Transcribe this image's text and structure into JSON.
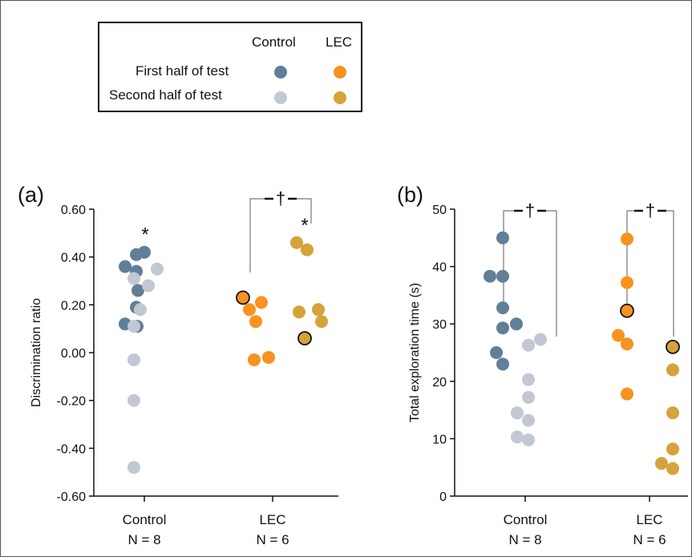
{
  "colors": {
    "control_first": "#607f98",
    "control_second": "#c1c8d3",
    "lec_first": "#f7931e",
    "lec_second": "#d4a33a",
    "axis": "#111111",
    "bracket": "#777777"
  },
  "legend": {
    "col_control": "Control",
    "col_lec": "LEC",
    "row_first": "First half of test",
    "row_second": "Second half of test"
  },
  "chart_data": [
    {
      "type": "scatter",
      "panel_label": "(a)",
      "ylabel": "Discrimination ratio",
      "ylim": [
        -0.6,
        0.6
      ],
      "yticks": [
        "0.60",
        "0.40",
        "0.20",
        "0.00",
        "-0.20",
        "-0.40",
        "-0.60"
      ],
      "ytick_values": [
        0.6,
        0.4,
        0.2,
        0.0,
        -0.2,
        -0.4,
        -0.6
      ],
      "groups": [
        {
          "name": "Control",
          "n_text": "N = 8"
        },
        {
          "name": "LEC",
          "n_text": "N = 6"
        }
      ],
      "series": [
        {
          "group": 0,
          "half": "first",
          "values": [
            0.42,
            0.41,
            0.36,
            0.34,
            0.26,
            0.19,
            0.12,
            0.11
          ]
        },
        {
          "group": 0,
          "half": "second",
          "values": [
            0.35,
            0.31,
            0.28,
            0.18,
            0.11,
            -0.03,
            -0.2,
            -0.48
          ]
        },
        {
          "group": 1,
          "half": "first",
          "values": [
            0.23,
            0.21,
            0.18,
            0.13,
            -0.02,
            -0.03
          ],
          "outlined_index": 0
        },
        {
          "group": 1,
          "half": "second",
          "values": [
            0.46,
            0.43,
            0.18,
            0.17,
            0.13,
            0.06
          ],
          "outlined_index": 5
        }
      ],
      "annotations": [
        {
          "text": "*",
          "series_index": 0
        },
        {
          "text": "*",
          "series_index": 3
        },
        {
          "text": "†",
          "bracket_group": 1
        }
      ]
    },
    {
      "type": "scatter",
      "panel_label": "(b)",
      "ylabel": "Total exploration time (s)",
      "ylim": [
        0,
        50
      ],
      "yticks": [
        "50",
        "40",
        "30",
        "20",
        "10",
        "0"
      ],
      "ytick_values": [
        50,
        40,
        30,
        20,
        10,
        0
      ],
      "groups": [
        {
          "name": "Control",
          "n_text": "N = 8"
        },
        {
          "name": "LEC",
          "n_text": "N = 6"
        }
      ],
      "series": [
        {
          "group": 0,
          "half": "first",
          "values": [
            45,
            38.3,
            38.3,
            32.8,
            30,
            29.3,
            25,
            23
          ]
        },
        {
          "group": 0,
          "half": "second",
          "values": [
            27.3,
            26.3,
            20.3,
            17.2,
            14.5,
            13.2,
            10.3,
            9.8
          ]
        },
        {
          "group": 1,
          "half": "first",
          "values": [
            44.8,
            37.2,
            32.3,
            28,
            26.5,
            17.8
          ],
          "outlined_index": 2
        },
        {
          "group": 1,
          "half": "second",
          "values": [
            26,
            22,
            14.5,
            8.2,
            5.7,
            4.8
          ],
          "outlined_index": 0
        }
      ],
      "annotations": [
        {
          "text": "†",
          "bracket_group": 0
        },
        {
          "text": "†",
          "bracket_group": 1
        }
      ]
    }
  ]
}
